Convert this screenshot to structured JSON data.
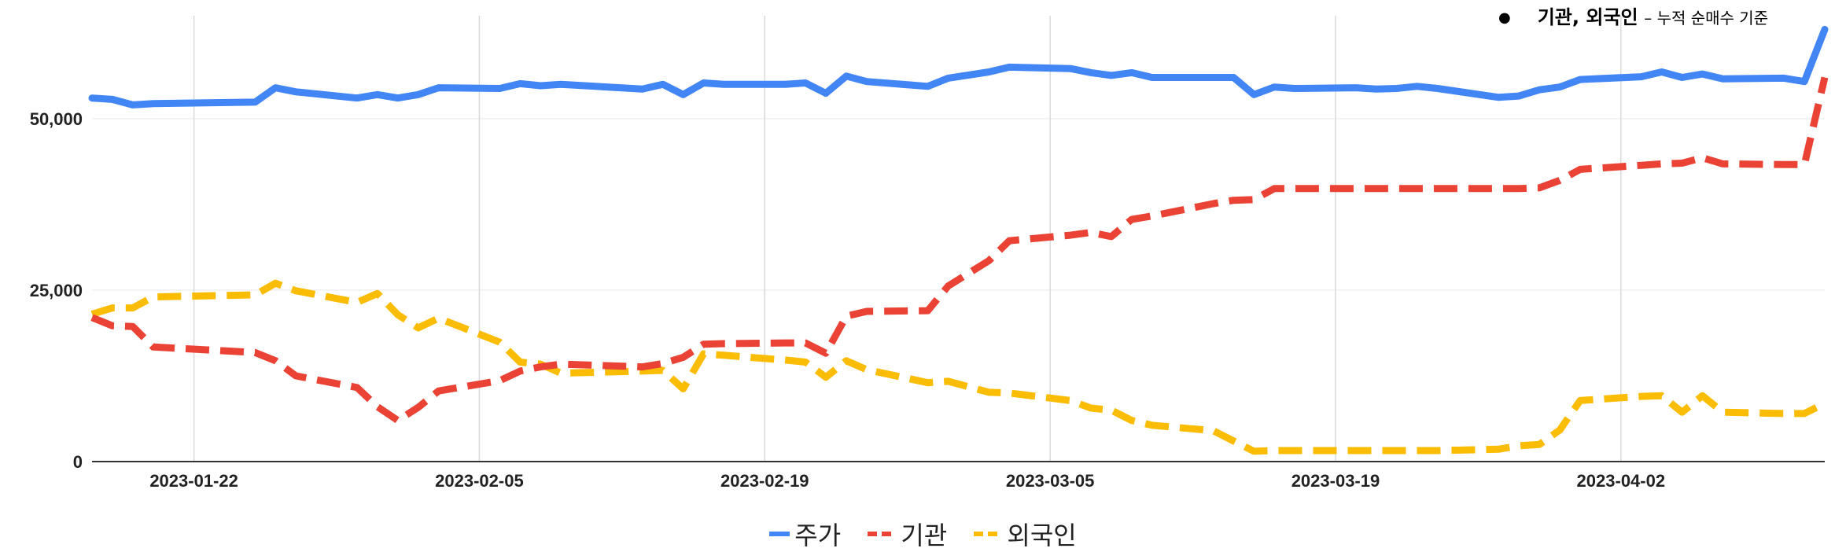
{
  "note": {
    "main": "기관, 외국인",
    "detail": "– 누적 순매수 기준"
  },
  "colors": {
    "price": "#4285F4",
    "institution": "#EA4335",
    "foreign": "#FBBC04",
    "grid": "#d9d9d9",
    "axis": "#333333"
  },
  "chart_data": {
    "type": "line",
    "title": "",
    "xlabel": "",
    "ylabel": "",
    "x_ticks": [
      "2023-01-22",
      "2023-02-05",
      "2023-02-19",
      "2023-03-05",
      "2023-03-19",
      "2023-04-02"
    ],
    "y_ticks": [
      "0",
      "25,000",
      "50,000"
    ],
    "ylim": [
      0,
      65000
    ],
    "xlim": [
      "2023-01-17",
      "2023-04-12"
    ],
    "grid": true,
    "legend_position": "bottom",
    "series": [
      {
        "name": "주가",
        "style": "solid",
        "color": "#4285F4",
        "points": [
          [
            "2023-01-17",
            53000
          ],
          [
            "2023-01-18",
            52800
          ],
          [
            "2023-01-19",
            52000
          ],
          [
            "2023-01-20",
            52200
          ],
          [
            "2023-01-25",
            52400
          ],
          [
            "2023-01-26",
            54500
          ],
          [
            "2023-01-27",
            53900
          ],
          [
            "2023-01-30",
            53000
          ],
          [
            "2023-01-31",
            53500
          ],
          [
            "2023-02-01",
            53000
          ],
          [
            "2023-02-02",
            53500
          ],
          [
            "2023-02-03",
            54500
          ],
          [
            "2023-02-06",
            54400
          ],
          [
            "2023-02-07",
            55100
          ],
          [
            "2023-02-08",
            54800
          ],
          [
            "2023-02-09",
            55000
          ],
          [
            "2023-02-13",
            54300
          ],
          [
            "2023-02-14",
            55000
          ],
          [
            "2023-02-15",
            53500
          ],
          [
            "2023-02-16",
            55200
          ],
          [
            "2023-02-17",
            55000
          ],
          [
            "2023-02-20",
            55000
          ],
          [
            "2023-02-21",
            55200
          ],
          [
            "2023-02-22",
            53700
          ],
          [
            "2023-02-23",
            56200
          ],
          [
            "2023-02-24",
            55400
          ],
          [
            "2023-02-27",
            54700
          ],
          [
            "2023-02-28",
            55900
          ],
          [
            "2023-03-02",
            56800
          ],
          [
            "2023-03-03",
            57500
          ],
          [
            "2023-03-06",
            57300
          ],
          [
            "2023-03-07",
            56700
          ],
          [
            "2023-03-08",
            56300
          ],
          [
            "2023-03-09",
            56700
          ],
          [
            "2023-03-10",
            56000
          ],
          [
            "2023-03-13",
            56000
          ],
          [
            "2023-03-14",
            56000
          ],
          [
            "2023-03-15",
            53500
          ],
          [
            "2023-03-16",
            54600
          ],
          [
            "2023-03-17",
            54400
          ],
          [
            "2023-03-20",
            54500
          ],
          [
            "2023-03-21",
            54300
          ],
          [
            "2023-03-22",
            54400
          ],
          [
            "2023-03-23",
            54700
          ],
          [
            "2023-03-24",
            54400
          ],
          [
            "2023-03-27",
            53100
          ],
          [
            "2023-03-28",
            53300
          ],
          [
            "2023-03-29",
            54200
          ],
          [
            "2023-03-30",
            54600
          ],
          [
            "2023-03-31",
            55700
          ],
          [
            "2023-04-03",
            56100
          ],
          [
            "2023-04-04",
            56800
          ],
          [
            "2023-04-05",
            56000
          ],
          [
            "2023-04-06",
            56500
          ],
          [
            "2023-04-07",
            55800
          ],
          [
            "2023-04-10",
            55900
          ],
          [
            "2023-04-11",
            55400
          ],
          [
            "2023-04-12",
            63000
          ]
        ]
      },
      {
        "name": "기관",
        "style": "dashed",
        "color": "#EA4335",
        "points": [
          [
            "2023-01-17",
            21000
          ],
          [
            "2023-01-18",
            19800
          ],
          [
            "2023-01-19",
            19700
          ],
          [
            "2023-01-20",
            16700
          ],
          [
            "2023-01-25",
            15900
          ],
          [
            "2023-01-26",
            14700
          ],
          [
            "2023-01-27",
            12500
          ],
          [
            "2023-01-30",
            10800
          ],
          [
            "2023-01-31",
            8000
          ],
          [
            "2023-02-01",
            6000
          ],
          [
            "2023-02-02",
            7900
          ],
          [
            "2023-02-03",
            10300
          ],
          [
            "2023-02-06",
            11800
          ],
          [
            "2023-02-07",
            13200
          ],
          [
            "2023-02-08",
            13800
          ],
          [
            "2023-02-09",
            14200
          ],
          [
            "2023-02-13",
            13800
          ],
          [
            "2023-02-14",
            14300
          ],
          [
            "2023-02-15",
            15200
          ],
          [
            "2023-02-16",
            17100
          ],
          [
            "2023-02-17",
            17200
          ],
          [
            "2023-02-20",
            17300
          ],
          [
            "2023-02-21",
            17300
          ],
          [
            "2023-02-22",
            15800
          ],
          [
            "2023-02-23",
            21200
          ],
          [
            "2023-02-24",
            21900
          ],
          [
            "2023-02-27",
            22000
          ],
          [
            "2023-02-28",
            25600
          ],
          [
            "2023-03-02",
            29300
          ],
          [
            "2023-03-03",
            32200
          ],
          [
            "2023-03-06",
            33000
          ],
          [
            "2023-03-07",
            33400
          ],
          [
            "2023-03-08",
            32800
          ],
          [
            "2023-03-09",
            35300
          ],
          [
            "2023-03-10",
            35800
          ],
          [
            "2023-03-13",
            37600
          ],
          [
            "2023-03-14",
            38100
          ],
          [
            "2023-03-15",
            38200
          ],
          [
            "2023-03-16",
            39800
          ],
          [
            "2023-03-17",
            39800
          ],
          [
            "2023-03-20",
            39800
          ],
          [
            "2023-03-21",
            39800
          ],
          [
            "2023-03-22",
            39800
          ],
          [
            "2023-03-23",
            39800
          ],
          [
            "2023-03-24",
            39800
          ],
          [
            "2023-03-27",
            39800
          ],
          [
            "2023-03-28",
            39800
          ],
          [
            "2023-03-29",
            39900
          ],
          [
            "2023-03-30",
            41000
          ],
          [
            "2023-03-31",
            42600
          ],
          [
            "2023-04-03",
            43200
          ],
          [
            "2023-04-04",
            43400
          ],
          [
            "2023-04-05",
            43500
          ],
          [
            "2023-04-06",
            44300
          ],
          [
            "2023-04-07",
            43400
          ],
          [
            "2023-04-10",
            43300
          ],
          [
            "2023-04-11",
            43300
          ],
          [
            "2023-04-12",
            56000
          ]
        ]
      },
      {
        "name": "외국인",
        "style": "dashed",
        "color": "#FBBC04",
        "points": [
          [
            "2023-01-17",
            21500
          ],
          [
            "2023-01-18",
            22400
          ],
          [
            "2023-01-19",
            22400
          ],
          [
            "2023-01-20",
            24000
          ],
          [
            "2023-01-25",
            24300
          ],
          [
            "2023-01-26",
            26000
          ],
          [
            "2023-01-27",
            24900
          ],
          [
            "2023-01-30",
            23200
          ],
          [
            "2023-01-31",
            24500
          ],
          [
            "2023-02-01",
            21400
          ],
          [
            "2023-02-02",
            19500
          ],
          [
            "2023-02-03",
            20900
          ],
          [
            "2023-02-06",
            17400
          ],
          [
            "2023-02-07",
            14500
          ],
          [
            "2023-02-08",
            14200
          ],
          [
            "2023-02-09",
            12900
          ],
          [
            "2023-02-13",
            13200
          ],
          [
            "2023-02-14",
            13300
          ],
          [
            "2023-02-15",
            10600
          ],
          [
            "2023-02-16",
            15700
          ],
          [
            "2023-02-17",
            15500
          ],
          [
            "2023-02-20",
            14800
          ],
          [
            "2023-02-21",
            14500
          ],
          [
            "2023-02-22",
            12300
          ],
          [
            "2023-02-23",
            14700
          ],
          [
            "2023-02-24",
            13400
          ],
          [
            "2023-02-27",
            11500
          ],
          [
            "2023-02-28",
            11700
          ],
          [
            "2023-03-02",
            10100
          ],
          [
            "2023-03-03",
            10000
          ],
          [
            "2023-03-06",
            8900
          ],
          [
            "2023-03-07",
            7800
          ],
          [
            "2023-03-08",
            7500
          ],
          [
            "2023-03-09",
            6000
          ],
          [
            "2023-03-10",
            5300
          ],
          [
            "2023-03-13",
            4500
          ],
          [
            "2023-03-14",
            3000
          ],
          [
            "2023-03-15",
            1500
          ],
          [
            "2023-03-16",
            1600
          ],
          [
            "2023-03-17",
            1600
          ],
          [
            "2023-03-20",
            1600
          ],
          [
            "2023-03-21",
            1600
          ],
          [
            "2023-03-22",
            1600
          ],
          [
            "2023-03-23",
            1600
          ],
          [
            "2023-03-24",
            1600
          ],
          [
            "2023-03-27",
            1800
          ],
          [
            "2023-03-28",
            2300
          ],
          [
            "2023-03-29",
            2500
          ],
          [
            "2023-03-30",
            4600
          ],
          [
            "2023-03-31",
            8900
          ],
          [
            "2023-04-03",
            9500
          ],
          [
            "2023-04-04",
            9600
          ],
          [
            "2023-04-05",
            7200
          ],
          [
            "2023-04-06",
            9600
          ],
          [
            "2023-04-07",
            7200
          ],
          [
            "2023-04-10",
            7000
          ],
          [
            "2023-04-11",
            7000
          ],
          [
            "2023-04-12",
            8500
          ]
        ]
      }
    ]
  }
}
